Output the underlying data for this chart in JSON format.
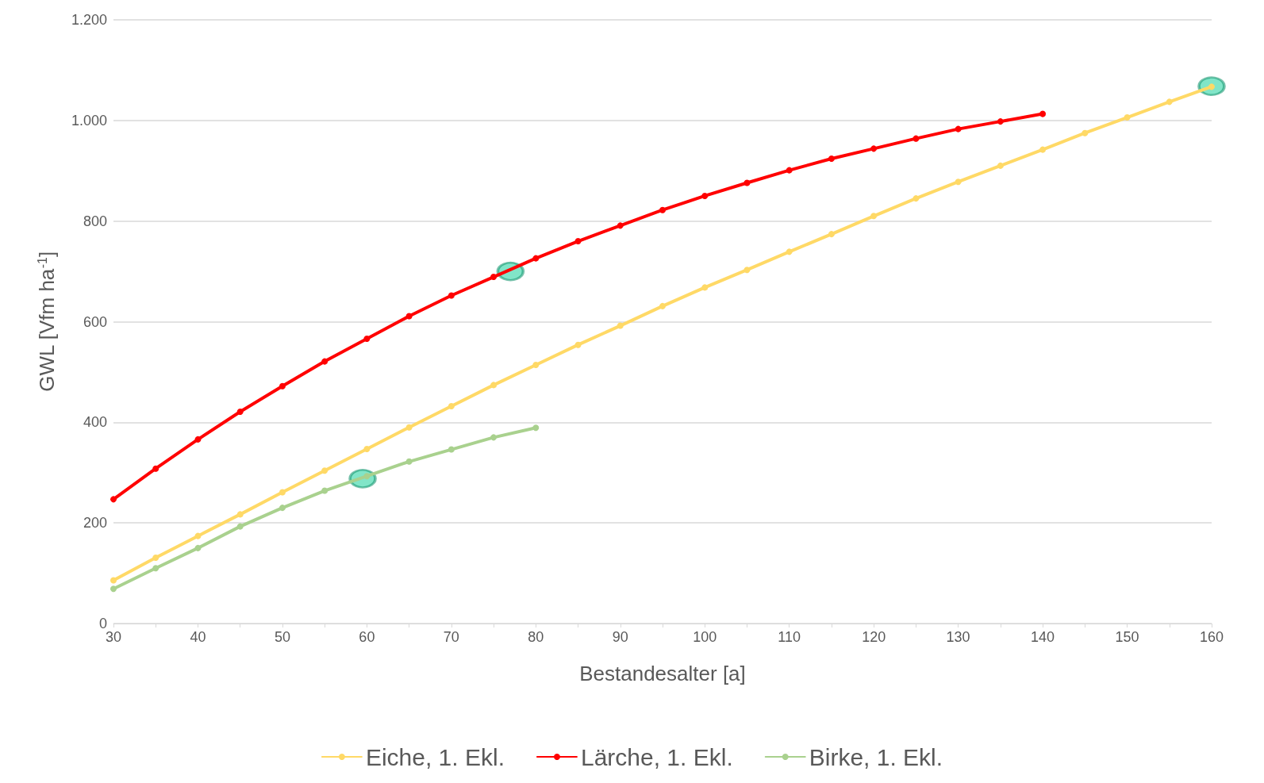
{
  "chart_data": {
    "type": "line",
    "xlabel": "Bestandesalter [a]",
    "ylabel": "GWL [Vfm ha$^{-1}$]",
    "xlim": [
      30,
      160
    ],
    "xticks": [
      30,
      {
        "value": 35,
        "label": null
      },
      40,
      {
        "value": 45,
        "label": null
      },
      50,
      {
        "value": 55,
        "label": null
      },
      60,
      {
        "value": 65,
        "label": null
      },
      70,
      {
        "value": 75,
        "label": null
      },
      80,
      {
        "value": 85,
        "label": null
      },
      90,
      {
        "value": 95,
        "label": null
      },
      100,
      {
        "value": 105,
        "label": null
      },
      110,
      {
        "value": 115,
        "label": null
      },
      120,
      {
        "value": 125,
        "label": null
      },
      130,
      {
        "value": 135,
        "label": null
      },
      140,
      {
        "value": 145,
        "label": null
      },
      150,
      {
        "value": 155,
        "label": null
      },
      160
    ],
    "ylim": [
      0,
      1200
    ],
    "yticks": [
      0,
      200,
      400,
      600,
      800,
      {
        "value": 1000,
        "label": "1.000"
      },
      {
        "value": 1200,
        "label": "1.200"
      }
    ],
    "grid": "y",
    "legend": "bottom",
    "marker": "circle",
    "line_style": "solid",
    "series": [
      {
        "name": "Eiche, 1. Ekl.",
        "color": "#ffd966",
        "x": [
          30,
          35,
          40,
          45,
          50,
          55,
          60,
          65,
          70,
          75,
          80,
          85,
          90,
          95,
          100,
          105,
          110,
          115,
          120,
          125,
          130,
          135,
          140,
          145,
          150,
          155,
          160
        ],
        "values": [
          86,
          131,
          174,
          217,
          261,
          304,
          347,
          390,
          432,
          474,
          514,
          554,
          592,
          631,
          668,
          703,
          739,
          774,
          810,
          845,
          878,
          910,
          942,
          975,
          1006,
          1037,
          1067
        ]
      },
      {
        "name": "Lärche, 1. Ekl.",
        "color": "#ff0000",
        "x": [
          30,
          35,
          40,
          45,
          50,
          55,
          60,
          65,
          70,
          75,
          80,
          85,
          90,
          95,
          100,
          105,
          110,
          115,
          120,
          125,
          130,
          135,
          140
        ],
        "values": [
          247,
          308,
          366,
          421,
          472,
          521,
          566,
          611,
          652,
          689,
          726,
          760,
          791,
          822,
          850,
          876,
          901,
          924,
          944,
          964,
          983,
          998,
          1013
        ]
      },
      {
        "name": "Birke, 1. Ekl.",
        "color": "#a9d18e",
        "x": [
          30,
          35,
          40,
          45,
          50,
          55,
          60,
          65,
          70,
          75,
          80
        ],
        "values": [
          69,
          110,
          150,
          193,
          230,
          264,
          293,
          322,
          346,
          370,
          389
        ]
      },
      {
        "type": "scatter",
        "color": "#19cf9b",
        "x": [
          59.5,
          77,
          160
        ],
        "values": [
          288,
          700,
          1068
        ]
      }
    ]
  }
}
